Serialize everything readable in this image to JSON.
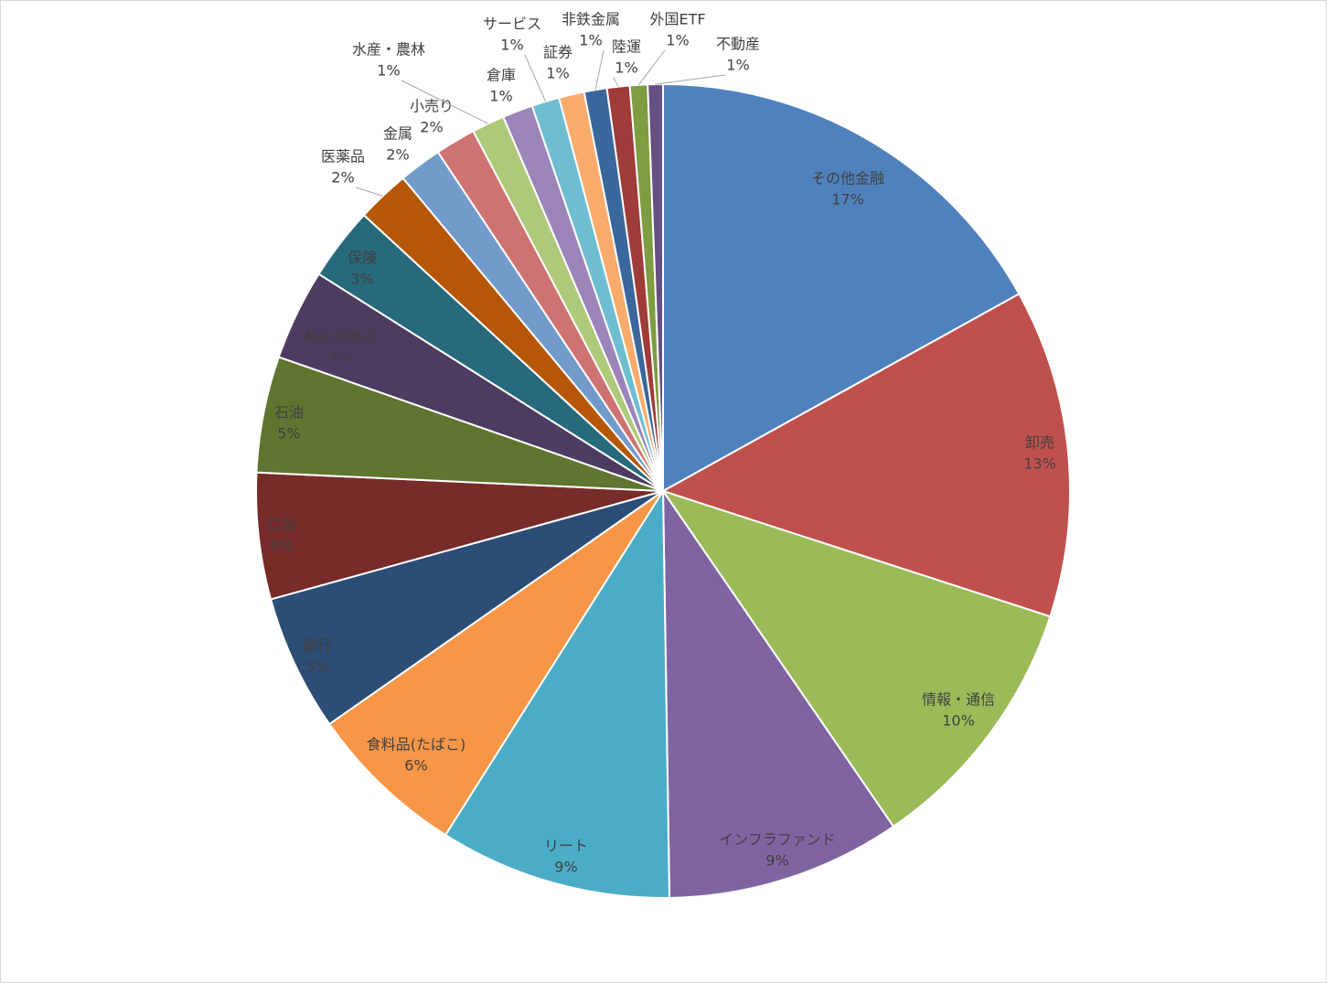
{
  "chart_data": {
    "type": "pie",
    "categories": [
      "その他金融",
      "卸売",
      "情報・通信",
      "インフラファンド",
      "リート",
      "食料品(たばこ)",
      "銀行",
      "建設",
      "石油",
      "輸送用機器",
      "保険",
      "医薬品",
      "金属",
      "小売り",
      "水産・農林",
      "倉庫",
      "サービス",
      "証券",
      "非鉄金属",
      "陸運",
      "外国ETF",
      "不動産"
    ],
    "values": [
      16.9,
      13.0,
      10.4,
      9.3,
      9.2,
      6.3,
      5.4,
      5.0,
      4.6,
      3.6,
      2.9,
      2.1,
      1.7,
      1.6,
      1.3,
      1.2,
      1.1,
      1.0,
      0.9,
      0.9,
      0.7,
      0.6
    ],
    "value_labels": [
      "17%",
      "13%",
      "10%",
      "9%",
      "9%",
      "6%",
      "5%",
      "5%",
      "5%",
      "4%",
      "3%",
      "2%",
      "2%",
      "2%",
      "1%",
      "1%",
      "1%",
      "1%",
      "1%",
      "1%",
      "1%",
      "1%"
    ],
    "colors": [
      "#4f81bd",
      "#c0504d",
      "#9bbb59",
      "#8064a2",
      "#4bacc6",
      "#f79646",
      "#2c4d75",
      "#772c2a",
      "#5f7530",
      "#4d3b62",
      "#276a7c",
      "#b65708",
      "#729aca",
      "#cd7371",
      "#afc97a",
      "#9c85b8",
      "#6fbdd1",
      "#f9ab6b",
      "#3a679c",
      "#9f3b38",
      "#7e9d40",
      "#664f83"
    ]
  }
}
